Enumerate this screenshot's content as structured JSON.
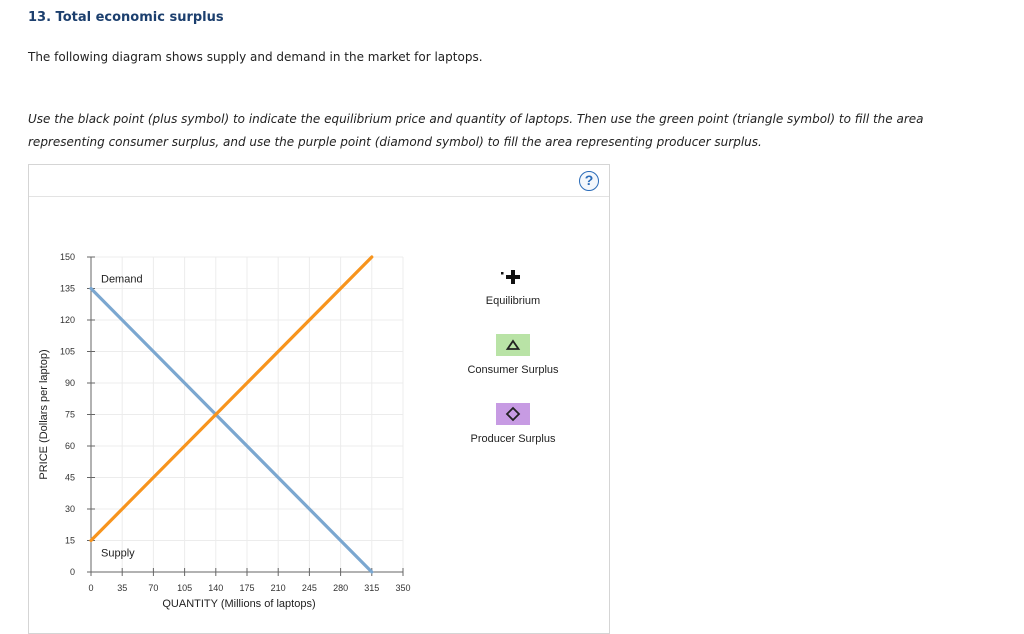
{
  "question": {
    "title": "13. Total economic surplus",
    "intro": "The following diagram shows supply and demand in the market for laptops.",
    "instructions": "Use the black point (plus symbol) to indicate the equilibrium price and quantity of laptops. Then use the green point (triangle symbol) to fill the area representing consumer surplus, and use the purple point (diamond symbol) to fill the area representing producer surplus."
  },
  "help": {
    "label": "?"
  },
  "legend": {
    "equilibrium": {
      "label": "Equilibrium",
      "icon": "plus-icon",
      "color": "#111111"
    },
    "consumer_surplus": {
      "label": "Consumer Surplus",
      "icon": "triangle-icon",
      "color": "#b9e3a6"
    },
    "producer_surplus": {
      "label": "Producer Surplus",
      "icon": "diamond-icon",
      "color": "#c79be3"
    }
  },
  "chart_data": {
    "type": "line",
    "xlabel": "QUANTITY (Millions of laptops)",
    "ylabel": "PRICE (Dollars per laptop)",
    "xlim": [
      0,
      350
    ],
    "ylim": [
      0,
      150
    ],
    "x_ticks": [
      0,
      35,
      70,
      105,
      140,
      175,
      210,
      245,
      280,
      315,
      350
    ],
    "y_ticks": [
      0,
      15,
      30,
      45,
      60,
      75,
      90,
      105,
      120,
      135,
      150
    ],
    "grid": true,
    "series": [
      {
        "name": "Demand",
        "color": "#7ba7d0",
        "points": [
          [
            0,
            135
          ],
          [
            315,
            0
          ]
        ]
      },
      {
        "name": "Supply",
        "color": "#f7941d",
        "points": [
          [
            0,
            15
          ],
          [
            315,
            150
          ]
        ]
      }
    ]
  }
}
